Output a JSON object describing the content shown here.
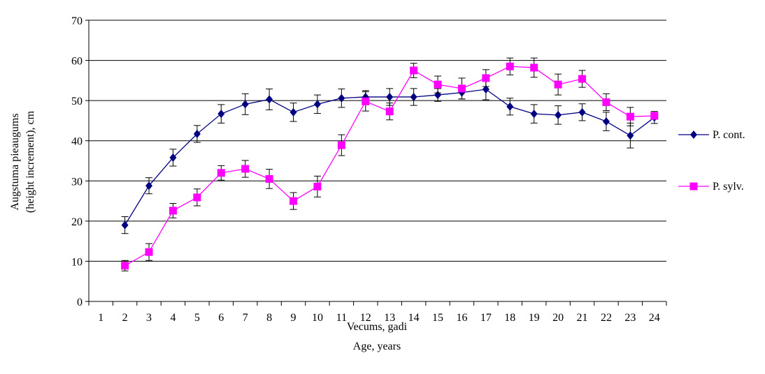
{
  "chart_data": {
    "type": "line",
    "title": "",
    "xlabel_lines": [
      "Vecums,  gadi",
      "Age, years"
    ],
    "ylabel_lines": [
      "Augstuma pieaugums",
      "(height  increment),  cm"
    ],
    "ylim": [
      0,
      70
    ],
    "yticks": [
      0,
      10,
      20,
      30,
      40,
      50,
      60,
      70
    ],
    "x_categories": [
      1,
      2,
      3,
      4,
      5,
      6,
      7,
      8,
      9,
      10,
      11,
      12,
      13,
      14,
      15,
      16,
      17,
      18,
      19,
      20,
      21,
      22,
      23,
      24
    ],
    "grid": "horizontal",
    "legend_position": "right",
    "series": [
      {
        "name": "P. cont.",
        "color": "#000080",
        "marker": "diamond",
        "x": [
          2,
          3,
          4,
          5,
          6,
          7,
          8,
          9,
          10,
          11,
          12,
          13,
          14,
          15,
          16,
          17,
          18,
          19,
          20,
          21,
          22,
          23,
          24
        ],
        "values": [
          19,
          28.8,
          35.8,
          41.7,
          46.7,
          49.1,
          50.3,
          47.1,
          49.1,
          50.6,
          50.9,
          50.9,
          50.9,
          51.4,
          52,
          52.8,
          48.5,
          46.7,
          46.4,
          47.1,
          44.8,
          41.3,
          45.8
        ],
        "errors": [
          2.1,
          2,
          2.1,
          2.1,
          2.3,
          2.6,
          2.6,
          2.3,
          2.3,
          2.3,
          1.6,
          2.1,
          2.1,
          1.6,
          1.6,
          2.6,
          2.1,
          2.3,
          2.3,
          2.1,
          2.3,
          3.1,
          1.5
        ]
      },
      {
        "name": "P. sylv.",
        "color": "#ff00ff",
        "marker": "square",
        "x": [
          2,
          3,
          4,
          5,
          6,
          7,
          8,
          9,
          10,
          11,
          12,
          13,
          14,
          15,
          16,
          17,
          18,
          19,
          20,
          21,
          22,
          23,
          24
        ],
        "values": [
          8.9,
          12.3,
          22.6,
          25.9,
          32,
          33,
          30.5,
          25,
          28.6,
          38.9,
          49.8,
          47.3,
          57.5,
          54,
          53,
          55.6,
          58.5,
          58.2,
          54,
          55.4,
          49.6,
          46,
          46.2
        ],
        "errors": [
          1.3,
          2.1,
          1.8,
          2.1,
          1.8,
          2.1,
          2.4,
          2.1,
          2.6,
          2.6,
          2.4,
          2.1,
          1.8,
          2.1,
          2.6,
          2.1,
          2.1,
          2.4,
          2.6,
          2.1,
          2.1,
          2.3,
          0.8
        ]
      }
    ]
  }
}
